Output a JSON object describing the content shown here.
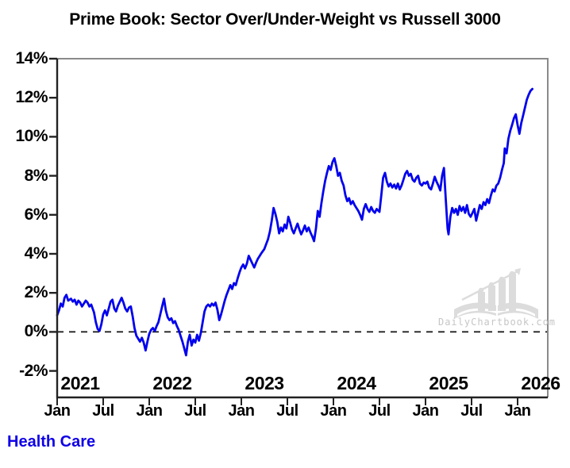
{
  "title": "Prime Book: Sector Over/Under-Weight vs Russell 3000",
  "footer": {
    "series_label": "Health Care"
  },
  "watermark": {
    "text": "DailyChartbook.com"
  },
  "colors": {
    "line": "#0202ee",
    "series_label": "#0f00e6",
    "zero_line": "#111111",
    "axis_dark": "#222222",
    "border_light": "#8a8a8a",
    "watermark_logo": "#dcdcdc",
    "watermark_text": "#c6c6c6"
  },
  "chart_data": {
    "type": "line",
    "title": "Prime Book: Sector Over/Under-Weight vs Russell 3000",
    "xlabel": "",
    "ylabel": "",
    "grid": false,
    "legend_position": "bottom-left-outside",
    "xlim": [
      2021.0,
      2026.33
    ],
    "ylim": [
      -3.36,
      14
    ],
    "zero_line": {
      "value": 0,
      "style": "dashed"
    },
    "y_ticks": [
      {
        "v": 14,
        "label": "14%"
      },
      {
        "v": 12,
        "label": "12%"
      },
      {
        "v": 10,
        "label": "10%"
      },
      {
        "v": 8,
        "label": "8%"
      },
      {
        "v": 6,
        "label": "6%"
      },
      {
        "v": 4,
        "label": "4%"
      },
      {
        "v": 2,
        "label": "2%"
      },
      {
        "v": 0,
        "label": "0%"
      },
      {
        "v": -2,
        "label": "-2%"
      }
    ],
    "x_ticks": [
      {
        "x": 2021.0,
        "label": "Jan"
      },
      {
        "x": 2021.5,
        "label": "Jul"
      },
      {
        "x": 2022.0,
        "label": "Jan"
      },
      {
        "x": 2022.5,
        "label": "Jul"
      },
      {
        "x": 2023.0,
        "label": "Jan"
      },
      {
        "x": 2023.5,
        "label": "Jul"
      },
      {
        "x": 2024.0,
        "label": "Jan"
      },
      {
        "x": 2024.5,
        "label": "Jul"
      },
      {
        "x": 2025.0,
        "label": "Jan"
      },
      {
        "x": 2025.5,
        "label": "Jul"
      },
      {
        "x": 2026.0,
        "label": "Jan"
      }
    ],
    "year_labels": [
      {
        "x": 2021.25,
        "label": "2021"
      },
      {
        "x": 2022.25,
        "label": "2022"
      },
      {
        "x": 2023.25,
        "label": "2023"
      },
      {
        "x": 2024.25,
        "label": "2024"
      },
      {
        "x": 2025.25,
        "label": "2025"
      },
      {
        "x": 2026.25,
        "label": "2026"
      }
    ],
    "series": [
      {
        "name": "Health Care",
        "color": "#0202ee",
        "points": [
          [
            2021.0,
            0.85
          ],
          [
            2021.02,
            1.1
          ],
          [
            2021.04,
            1.45
          ],
          [
            2021.06,
            1.3
          ],
          [
            2021.08,
            1.75
          ],
          [
            2021.1,
            1.9
          ],
          [
            2021.12,
            1.6
          ],
          [
            2021.15,
            1.7
          ],
          [
            2021.17,
            1.55
          ],
          [
            2021.19,
            1.65
          ],
          [
            2021.21,
            1.4
          ],
          [
            2021.23,
            1.6
          ],
          [
            2021.25,
            1.5
          ],
          [
            2021.27,
            1.3
          ],
          [
            2021.29,
            1.45
          ],
          [
            2021.31,
            1.6
          ],
          [
            2021.33,
            1.5
          ],
          [
            2021.35,
            1.3
          ],
          [
            2021.37,
            1.4
          ],
          [
            2021.4,
            1.0
          ],
          [
            2021.42,
            0.5
          ],
          [
            2021.44,
            0.15
          ],
          [
            2021.46,
            0.05
          ],
          [
            2021.48,
            0.4
          ],
          [
            2021.5,
            0.9
          ],
          [
            2021.52,
            1.1
          ],
          [
            2021.54,
            0.85
          ],
          [
            2021.56,
            1.2
          ],
          [
            2021.58,
            1.55
          ],
          [
            2021.6,
            1.65
          ],
          [
            2021.62,
            1.2
          ],
          [
            2021.64,
            1.05
          ],
          [
            2021.66,
            1.35
          ],
          [
            2021.68,
            1.55
          ],
          [
            2021.7,
            1.75
          ],
          [
            2021.72,
            1.5
          ],
          [
            2021.74,
            1.2
          ],
          [
            2021.76,
            1.05
          ],
          [
            2021.78,
            1.25
          ],
          [
            2021.8,
            1.3
          ],
          [
            2021.82,
            0.8
          ],
          [
            2021.84,
            0.2
          ],
          [
            2021.86,
            -0.2
          ],
          [
            2021.88,
            -0.35
          ],
          [
            2021.9,
            -0.5
          ],
          [
            2021.92,
            -0.3
          ],
          [
            2021.94,
            -0.55
          ],
          [
            2021.96,
            -0.95
          ],
          [
            2021.98,
            -0.5
          ],
          [
            2022.0,
            -0.1
          ],
          [
            2022.02,
            0.1
          ],
          [
            2022.04,
            0.2
          ],
          [
            2022.06,
            0.05
          ],
          [
            2022.08,
            0.3
          ],
          [
            2022.1,
            0.5
          ],
          [
            2022.12,
            0.9
          ],
          [
            2022.14,
            1.3
          ],
          [
            2022.16,
            1.7
          ],
          [
            2022.18,
            1.1
          ],
          [
            2022.2,
            0.75
          ],
          [
            2022.22,
            0.6
          ],
          [
            2022.24,
            0.7
          ],
          [
            2022.26,
            0.45
          ],
          [
            2022.28,
            0.55
          ],
          [
            2022.3,
            0.3
          ],
          [
            2022.32,
            0.1
          ],
          [
            2022.34,
            -0.2
          ],
          [
            2022.36,
            -0.5
          ],
          [
            2022.38,
            -0.85
          ],
          [
            2022.4,
            -1.2
          ],
          [
            2022.42,
            -0.5
          ],
          [
            2022.44,
            -0.15
          ],
          [
            2022.46,
            -0.7
          ],
          [
            2022.48,
            -0.4
          ],
          [
            2022.5,
            -0.55
          ],
          [
            2022.52,
            -0.15
          ],
          [
            2022.54,
            -0.45
          ],
          [
            2022.56,
            -0.05
          ],
          [
            2022.58,
            0.5
          ],
          [
            2022.6,
            1.05
          ],
          [
            2022.62,
            1.3
          ],
          [
            2022.64,
            1.4
          ],
          [
            2022.66,
            1.3
          ],
          [
            2022.68,
            1.45
          ],
          [
            2022.7,
            1.35
          ],
          [
            2022.72,
            1.5
          ],
          [
            2022.74,
            1.15
          ],
          [
            2022.76,
            0.6
          ],
          [
            2022.78,
            0.9
          ],
          [
            2022.8,
            1.25
          ],
          [
            2022.82,
            1.6
          ],
          [
            2022.84,
            1.9
          ],
          [
            2022.86,
            2.15
          ],
          [
            2022.88,
            2.4
          ],
          [
            2022.9,
            2.2
          ],
          [
            2022.92,
            2.5
          ],
          [
            2022.94,
            2.4
          ],
          [
            2022.96,
            2.75
          ],
          [
            2022.98,
            3.05
          ],
          [
            2023.0,
            3.3
          ],
          [
            2023.02,
            3.45
          ],
          [
            2023.04,
            3.25
          ],
          [
            2023.06,
            3.5
          ],
          [
            2023.08,
            3.9
          ],
          [
            2023.1,
            3.7
          ],
          [
            2023.12,
            3.5
          ],
          [
            2023.14,
            3.3
          ],
          [
            2023.16,
            3.55
          ],
          [
            2023.18,
            3.75
          ],
          [
            2023.2,
            3.9
          ],
          [
            2023.22,
            4.05
          ],
          [
            2023.25,
            4.25
          ],
          [
            2023.27,
            4.5
          ],
          [
            2023.29,
            4.75
          ],
          [
            2023.31,
            5.15
          ],
          [
            2023.33,
            5.7
          ],
          [
            2023.35,
            6.35
          ],
          [
            2023.37,
            6.05
          ],
          [
            2023.39,
            5.65
          ],
          [
            2023.41,
            5.05
          ],
          [
            2023.43,
            5.35
          ],
          [
            2023.45,
            5.15
          ],
          [
            2023.47,
            5.5
          ],
          [
            2023.49,
            5.3
          ],
          [
            2023.51,
            5.9
          ],
          [
            2023.53,
            5.6
          ],
          [
            2023.55,
            5.25
          ],
          [
            2023.57,
            5.05
          ],
          [
            2023.59,
            5.3
          ],
          [
            2023.61,
            5.55
          ],
          [
            2023.63,
            5.25
          ],
          [
            2023.65,
            5.0
          ],
          [
            2023.67,
            5.2
          ],
          [
            2023.69,
            5.45
          ],
          [
            2023.71,
            5.15
          ],
          [
            2023.73,
            5.35
          ],
          [
            2023.75,
            5.1
          ],
          [
            2023.77,
            4.9
          ],
          [
            2023.79,
            4.65
          ],
          [
            2023.81,
            5.3
          ],
          [
            2023.83,
            6.2
          ],
          [
            2023.85,
            5.9
          ],
          [
            2023.87,
            6.6
          ],
          [
            2023.89,
            7.2
          ],
          [
            2023.91,
            7.75
          ],
          [
            2023.93,
            8.15
          ],
          [
            2023.95,
            8.5
          ],
          [
            2023.97,
            8.3
          ],
          [
            2023.99,
            8.7
          ],
          [
            2024.01,
            8.9
          ],
          [
            2024.03,
            8.5
          ],
          [
            2024.05,
            8.0
          ],
          [
            2024.07,
            8.15
          ],
          [
            2024.09,
            7.75
          ],
          [
            2024.11,
            7.5
          ],
          [
            2024.13,
            7.0
          ],
          [
            2024.15,
            6.7
          ],
          [
            2024.17,
            6.85
          ],
          [
            2024.19,
            6.55
          ],
          [
            2024.21,
            6.7
          ],
          [
            2024.23,
            6.5
          ],
          [
            2024.25,
            6.35
          ],
          [
            2024.27,
            6.2
          ],
          [
            2024.29,
            6.0
          ],
          [
            2024.31,
            5.75
          ],
          [
            2024.33,
            6.3
          ],
          [
            2024.35,
            6.55
          ],
          [
            2024.37,
            6.3
          ],
          [
            2024.39,
            6.15
          ],
          [
            2024.41,
            6.4
          ],
          [
            2024.43,
            6.2
          ],
          [
            2024.45,
            6.1
          ],
          [
            2024.47,
            6.3
          ],
          [
            2024.5,
            6.15
          ],
          [
            2024.52,
            7.0
          ],
          [
            2024.54,
            7.9
          ],
          [
            2024.56,
            8.15
          ],
          [
            2024.58,
            7.7
          ],
          [
            2024.6,
            7.45
          ],
          [
            2024.62,
            7.6
          ],
          [
            2024.64,
            7.4
          ],
          [
            2024.66,
            7.55
          ],
          [
            2024.68,
            7.35
          ],
          [
            2024.7,
            7.6
          ],
          [
            2024.72,
            7.3
          ],
          [
            2024.74,
            7.5
          ],
          [
            2024.76,
            7.8
          ],
          [
            2024.78,
            8.1
          ],
          [
            2024.8,
            8.25
          ],
          [
            2024.82,
            8.0
          ],
          [
            2024.84,
            8.1
          ],
          [
            2024.86,
            7.8
          ],
          [
            2024.88,
            7.7
          ],
          [
            2024.9,
            7.9
          ],
          [
            2024.92,
            8.0
          ],
          [
            2024.94,
            7.6
          ],
          [
            2024.96,
            7.5
          ],
          [
            2024.98,
            7.65
          ],
          [
            2025.0,
            7.6
          ],
          [
            2025.02,
            7.7
          ],
          [
            2025.04,
            7.4
          ],
          [
            2025.06,
            7.3
          ],
          [
            2025.08,
            7.6
          ],
          [
            2025.1,
            7.95
          ],
          [
            2025.12,
            7.7
          ],
          [
            2025.14,
            7.5
          ],
          [
            2025.16,
            7.25
          ],
          [
            2025.18,
            8.0
          ],
          [
            2025.2,
            8.4
          ],
          [
            2025.22,
            6.8
          ],
          [
            2025.24,
            5.3
          ],
          [
            2025.25,
            5.0
          ],
          [
            2025.27,
            5.9
          ],
          [
            2025.29,
            6.35
          ],
          [
            2025.31,
            6.1
          ],
          [
            2025.33,
            6.3
          ],
          [
            2025.35,
            6.0
          ],
          [
            2025.37,
            6.45
          ],
          [
            2025.39,
            6.2
          ],
          [
            2025.41,
            6.4
          ],
          [
            2025.43,
            6.1
          ],
          [
            2025.45,
            6.5
          ],
          [
            2025.47,
            6.05
          ],
          [
            2025.49,
            5.9
          ],
          [
            2025.51,
            6.1
          ],
          [
            2025.53,
            6.3
          ],
          [
            2025.55,
            5.7
          ],
          [
            2025.57,
            6.1
          ],
          [
            2025.59,
            6.5
          ],
          [
            2025.61,
            6.3
          ],
          [
            2025.63,
            6.65
          ],
          [
            2025.65,
            6.5
          ],
          [
            2025.67,
            6.8
          ],
          [
            2025.69,
            6.6
          ],
          [
            2025.71,
            7.0
          ],
          [
            2025.73,
            7.3
          ],
          [
            2025.75,
            7.2
          ],
          [
            2025.77,
            7.5
          ],
          [
            2025.79,
            7.6
          ],
          [
            2025.81,
            7.9
          ],
          [
            2025.83,
            8.3
          ],
          [
            2025.85,
            8.65
          ],
          [
            2025.86,
            9.4
          ],
          [
            2025.88,
            9.15
          ],
          [
            2025.9,
            9.9
          ],
          [
            2025.92,
            10.3
          ],
          [
            2025.94,
            10.6
          ],
          [
            2025.96,
            10.95
          ],
          [
            2025.98,
            11.15
          ],
          [
            2026.0,
            10.6
          ],
          [
            2026.02,
            10.15
          ],
          [
            2026.04,
            10.7
          ],
          [
            2026.06,
            11.1
          ],
          [
            2026.08,
            11.5
          ],
          [
            2026.1,
            11.9
          ],
          [
            2026.12,
            12.15
          ],
          [
            2026.14,
            12.35
          ],
          [
            2026.16,
            12.45
          ]
        ]
      }
    ]
  }
}
